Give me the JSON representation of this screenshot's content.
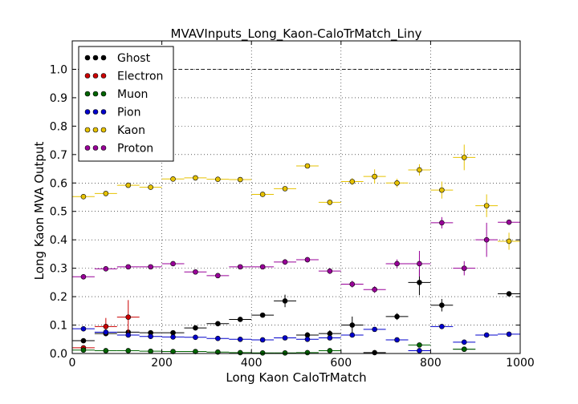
{
  "chart_data": {
    "type": "scatter",
    "title": "MVAVInputs_Long_Kaon-CaloTrMatch_Liny",
    "xlabel": "Long Kaon CaloTrMatch",
    "ylabel": "Long Kaon MVA Output",
    "xlim": [
      0,
      1000
    ],
    "ylim": [
      0,
      1.1
    ],
    "xticks": [
      "0",
      "200",
      "400",
      "600",
      "800",
      "1000"
    ],
    "yticks": [
      "0.0",
      "0.1",
      "0.2",
      "0.3",
      "0.4",
      "0.5",
      "0.6",
      "0.7",
      "0.8",
      "0.9",
      "1.0"
    ],
    "grid": true,
    "legend_position": "top-left",
    "reference_line": 1.0,
    "bin_half_width": 25,
    "x": [
      25,
      75,
      125,
      175,
      225,
      275,
      325,
      375,
      425,
      475,
      525,
      575,
      625,
      675,
      725,
      775,
      825,
      875,
      925,
      975
    ],
    "series": [
      {
        "name": "Ghost",
        "color": "#000000",
        "values": [
          0.045,
          0.07,
          0.075,
          0.073,
          0.073,
          0.09,
          0.105,
          0.12,
          0.135,
          0.185,
          0.065,
          0.07,
          0.1,
          0.003,
          0.13,
          0.25,
          0.17,
          0.015,
          null,
          0.21
        ],
        "errors": [
          0.005,
          0.005,
          0.005,
          0.004,
          0.004,
          0.005,
          0.005,
          0.006,
          0.007,
          0.022,
          0.01,
          0.012,
          0.03,
          0.003,
          0.012,
          0.045,
          0.022,
          0.005,
          null,
          0.005
        ]
      },
      {
        "name": "Electron",
        "color": "#cc0000",
        "values": [
          0.02,
          0.095,
          0.128,
          null,
          null,
          null,
          null,
          null,
          null,
          null,
          null,
          null,
          null,
          null,
          null,
          null,
          null,
          null,
          null,
          null
        ],
        "errors": [
          0.006,
          0.03,
          0.06,
          null,
          null,
          null,
          null,
          null,
          null,
          null,
          null,
          null,
          null,
          null,
          null,
          null,
          null,
          null,
          null,
          null
        ]
      },
      {
        "name": "Muon",
        "color": "#006400",
        "values": [
          0.012,
          0.01,
          0.01,
          0.008,
          0.007,
          0.007,
          0.005,
          0.003,
          0.002,
          0.002,
          0.003,
          0.01,
          null,
          null,
          null,
          0.03,
          null,
          0.015,
          null,
          null
        ],
        "errors": [
          0.002,
          0.002,
          0.002,
          0.002,
          0.002,
          0.002,
          0.002,
          0.001,
          0.001,
          0.001,
          0.001,
          0.003,
          null,
          null,
          null,
          0.008,
          null,
          0.004,
          null,
          null
        ]
      },
      {
        "name": "Pion",
        "color": "#0000cc",
        "values": [
          0.087,
          0.075,
          0.065,
          0.06,
          0.058,
          0.057,
          0.053,
          0.05,
          0.048,
          0.055,
          0.05,
          0.055,
          0.065,
          0.085,
          0.048,
          0.01,
          0.095,
          0.04,
          0.065,
          0.068
        ],
        "errors": [
          0.003,
          0.003,
          0.003,
          0.003,
          0.003,
          0.003,
          0.003,
          0.003,
          0.003,
          0.003,
          0.003,
          0.004,
          0.005,
          0.006,
          0.006,
          0.004,
          0.006,
          0.005,
          0.005,
          0.004
        ]
      },
      {
        "name": "Kaon",
        "color": "#e6c200",
        "values": [
          0.552,
          0.563,
          0.592,
          0.585,
          0.614,
          0.618,
          0.613,
          0.612,
          0.56,
          0.58,
          0.66,
          0.532,
          0.605,
          0.623,
          0.6,
          0.646,
          0.575,
          0.69,
          0.52,
          0.395
        ],
        "errors": [
          0.006,
          0.006,
          0.006,
          0.006,
          0.006,
          0.006,
          0.006,
          0.006,
          0.008,
          0.008,
          0.008,
          0.01,
          0.012,
          0.025,
          0.015,
          0.02,
          0.03,
          0.045,
          0.04,
          0.03
        ]
      },
      {
        "name": "Proton",
        "color": "#990099",
        "values": [
          0.27,
          0.298,
          0.305,
          0.305,
          0.316,
          0.287,
          0.274,
          0.305,
          0.305,
          0.322,
          0.33,
          0.29,
          0.244,
          0.225,
          0.316,
          0.316,
          0.46,
          0.3,
          0.4,
          0.462
        ],
        "errors": [
          0.005,
          0.005,
          0.005,
          0.005,
          0.005,
          0.005,
          0.005,
          0.006,
          0.006,
          0.01,
          0.01,
          0.01,
          0.012,
          0.012,
          0.015,
          0.045,
          0.02,
          0.025,
          0.06,
          0.005
        ]
      }
    ]
  }
}
